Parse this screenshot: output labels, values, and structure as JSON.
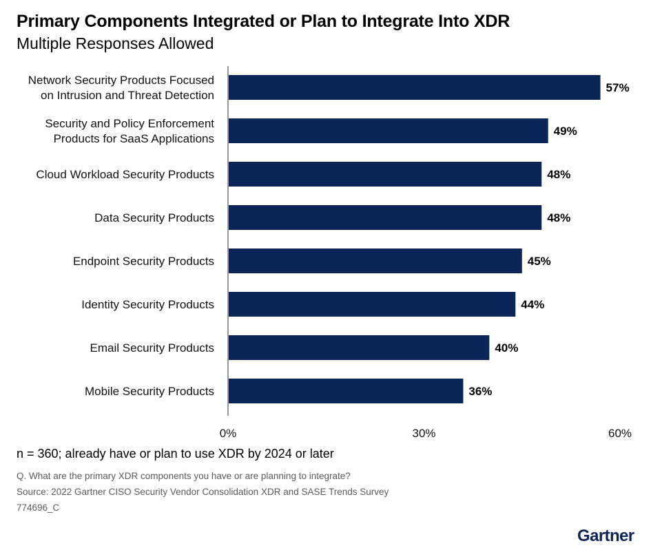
{
  "chart_data": {
    "type": "bar",
    "orientation": "horizontal",
    "title": "Primary Components Integrated or Plan to Integrate Into XDR",
    "subtitle": "Multiple Responses Allowed",
    "categories": [
      "Network Security Products Focused on Intrusion and Threat Detection",
      "Security and Policy Enforcement Products for SaaS Applications",
      "Cloud Workload Security Products",
      "Data Security Products",
      "Endpoint Security Products",
      "Identity Security Products",
      "Email Security Products",
      "Mobile Security Products"
    ],
    "category_lines": [
      [
        "Network Security Products Focused",
        "on Intrusion and Threat Detection"
      ],
      [
        "Security and Policy Enforcement",
        "Products for SaaS Applications"
      ],
      [
        "Cloud Workload Security Products"
      ],
      [
        "Data Security Products"
      ],
      [
        "Endpoint Security Products"
      ],
      [
        "Identity Security Products"
      ],
      [
        "Email Security Products"
      ],
      [
        "Mobile Security Products"
      ]
    ],
    "values": [
      57,
      49,
      48,
      48,
      45,
      44,
      40,
      36
    ],
    "value_labels": [
      "57%",
      "49%",
      "48%",
      "48%",
      "45%",
      "44%",
      "40%",
      "36%"
    ],
    "x_ticks": [
      0,
      30,
      60
    ],
    "x_tick_labels": [
      "0%",
      "30%",
      "60%"
    ],
    "xlim": [
      0,
      60
    ],
    "xlabel": "",
    "ylabel": "",
    "grid": false,
    "bar_color": "#0b2559"
  },
  "notes": {
    "sample": "n = 360; already have or plan to use XDR by 2024 or later",
    "question": "Q. What are the primary XDR components you have or are planning to integrate?",
    "source": "Source: 2022 Gartner CISO Security Vendor Consolidation XDR and SASE Trends Survey",
    "id": "774696_C"
  },
  "brand": "Gartner"
}
